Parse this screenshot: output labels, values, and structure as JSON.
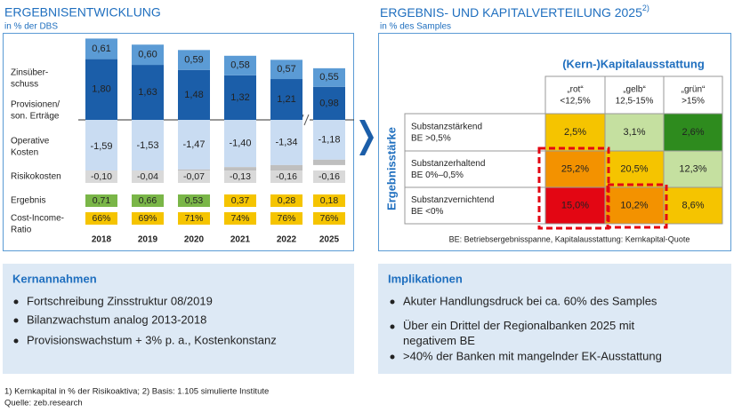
{
  "chart_data": [
    {
      "type": "stacked_bar",
      "title": "ERGEBNISENTWICKLUNG",
      "subtitle": "in % der DBS",
      "categories": [
        "2018",
        "2019",
        "2020",
        "2021",
        "2022",
        "2025"
      ],
      "series": [
        {
          "name": "Zinsüber-\nschuss",
          "color": "#1b5ea9",
          "values": [
            1.8,
            1.63,
            1.48,
            1.32,
            1.21,
            0.98
          ],
          "value_labels": [
            "1,80",
            "1,63",
            "1,48",
            "1,32",
            "1,21",
            "0,98"
          ]
        },
        {
          "name": "Provisionen/\nson. Erträge",
          "color": "#5b9bd5",
          "values": [
            0.61,
            0.6,
            0.59,
            0.58,
            0.57,
            0.55
          ],
          "value_labels": [
            "0,61",
            "0,60",
            "0,59",
            "0,58",
            "0,57",
            "0,55"
          ]
        },
        {
          "name": "Operative\nKosten",
          "color": "#c9dcf2",
          "values": [
            -1.59,
            -1.53,
            -1.47,
            -1.4,
            -1.34,
            -1.18
          ],
          "value_labels": [
            "-1,59",
            "-1,53",
            "-1,47",
            "-1,40",
            "-1,34",
            "-1,18"
          ]
        },
        {
          "name": "Risikokosten",
          "color": "#bfbfbf",
          "values": [
            -0.1,
            -0.04,
            -0.07,
            -0.13,
            -0.16,
            -0.16
          ],
          "value_labels": [
            "-0,10",
            "-0,04",
            "-0,07",
            "-0,13",
            "-0,16",
            "-0,16"
          ]
        }
      ],
      "summary_rows": [
        {
          "name": "Ergebnis",
          "values": [
            0.71,
            0.66,
            0.53,
            0.37,
            0.28,
            0.18
          ],
          "value_labels": [
            "0,71",
            "0,66",
            "0,53",
            "0,37",
            "0,28",
            "0,18"
          ],
          "colors": [
            "#7ab648",
            "#7ab648",
            "#7ab648",
            "#f5c400",
            "#f5c400",
            "#f5c400"
          ]
        },
        {
          "name": "Cost-Income-\nRatio",
          "values": [
            66,
            69,
            71,
            74,
            76,
            76
          ],
          "value_labels": [
            "66%",
            "69%",
            "71%",
            "74%",
            "76%",
            "76%"
          ],
          "colors": [
            "#f5c400",
            "#f5c400",
            "#f5c400",
            "#f5c400",
            "#f5c400",
            "#f5c400"
          ]
        }
      ]
    },
    {
      "type": "heatmap",
      "title": "ERGEBNIS- UND KAPITALVERTEILUNG 2025",
      "title_note": "2)",
      "subtitle": "in % des Samples",
      "x_label": "(Kern-)Kapitalausstattung",
      "y_label": "Ergebnisstärke",
      "columns": [
        "„rot“\n<12,5%",
        "„gelb“\n12,5-15%",
        "„grün“\n>15%"
      ],
      "rows": [
        "Substanzstärkend\nBE >0,5%",
        "Substanzerhaltend\nBE 0%–0,5%",
        "Substanzvernichtend\nBE <0%"
      ],
      "values": [
        [
          2.5,
          3.1,
          2.6
        ],
        [
          25.2,
          20.5,
          12.3
        ],
        [
          15.0,
          10.2,
          8.6
        ]
      ],
      "value_labels": [
        [
          "2,5%",
          "3,1%",
          "2,6%"
        ],
        [
          "25,2%",
          "20,5%",
          "12,3%"
        ],
        [
          "15,0%",
          "10,2%",
          "8,6%"
        ]
      ],
      "colors": [
        [
          "#f5c400",
          "#c5e0a0",
          "#2e8b1e"
        ],
        [
          "#f39200",
          "#f5c400",
          "#c5e0a0"
        ],
        [
          "#e30613",
          "#f39200",
          "#f5c400"
        ]
      ],
      "note": "BE: Betriebsergebnisspanne, Kapitalausstattung: Kernkapital-Quote"
    }
  ],
  "key_assumptions": {
    "title": "Kernannahmen",
    "items": [
      "Fortschreibung Zinsstruktur 08/2019",
      "Bilanzwachstum analog 2013-2018",
      "Provisionswachstum + 3% p. a., Kostenkonstanz"
    ]
  },
  "implications": {
    "title": "Implikationen",
    "items": [
      "Akuter Handlungsdruck bei ca. 60% des Samples",
      "Über ein Drittel der Regionalbanken 2025 mit\nnegativem BE",
      ">40% der Banken mit mangelnder EK-Ausstattung"
    ]
  },
  "footnotes": [
    "1) Kernkapital in % der Risikoaktiva; 2) Basis: 1.105 simulierte Institute",
    "Quelle: zeb.research"
  ]
}
